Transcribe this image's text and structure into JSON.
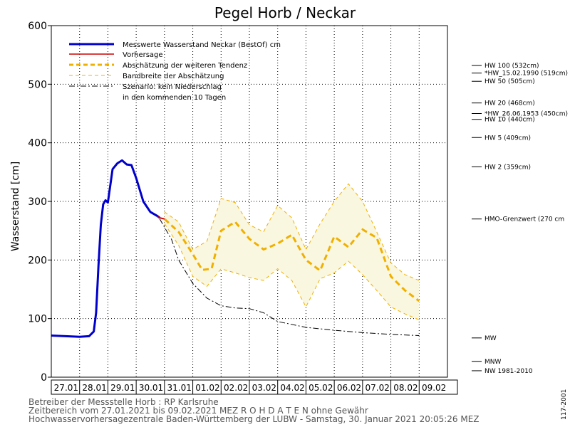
{
  "chart_data": {
    "type": "line",
    "title": "Pegel Horb / Neckar",
    "ylabel": "Wasserstand [cm]",
    "xlabel": "",
    "ylim": [
      0,
      600
    ],
    "yticks": [
      0,
      100,
      200,
      300,
      400,
      500,
      600
    ],
    "xlim": [
      "27.01.2021 00:00",
      "09.02.2021 24:00"
    ],
    "categories": [
      "27.01",
      "28.01",
      "29.01",
      "30.01",
      "31.01",
      "01.02",
      "02.02",
      "03.02",
      "04.02",
      "05.02",
      "06.02",
      "07.02",
      "08.02",
      "09.02"
    ],
    "grid": true,
    "legend_position": "top-left",
    "legend": [
      "Messwerte Wasserstand Neckar  (BestOf)   cm",
      "Vorhersage",
      "Abschätzung der weiteren Tendenz",
      "Bandbreite der Abschätzung",
      "Szenario: kein Niederschlag",
      "in den kommenden 10 Tagen"
    ],
    "colors": {
      "measured": "#0000cc",
      "forecast": "#cc0000",
      "tendency": "#f0b000",
      "band_line": "#f0b000",
      "band_fill": "#faf7e0",
      "scenario": "#000000",
      "grid": "#000000"
    },
    "series": [
      {
        "name": "Messwerte Wasserstand Neckar  (BestOf)   cm",
        "x": [
          "27.01.2021 00:00",
          "27.01.2021 12:00",
          "28.01.2021 00:00",
          "28.01.2021 08:00",
          "28.01.2021 12:00",
          "28.01.2021 14:00",
          "28.01.2021 16:00",
          "28.01.2021 18:00",
          "28.01.2021 20:00",
          "28.01.2021 22:00",
          "29.01.2021 00:00",
          "29.01.2021 04:00",
          "29.01.2021 08:00",
          "29.01.2021 12:00",
          "29.01.2021 16:00",
          "29.01.2021 20:00",
          "30.01.2021 00:00",
          "30.01.2021 06:00",
          "30.01.2021 12:00",
          "30.01.2021 18:00",
          "30.01.2021 20:00"
        ],
        "values": [
          71,
          70,
          69,
          70,
          78,
          110,
          190,
          260,
          295,
          302,
          298,
          355,
          365,
          370,
          363,
          362,
          340,
          300,
          282,
          275,
          272
        ]
      },
      {
        "name": "Vorhersage",
        "x": [
          "30.01.2021 18:00",
          "30.01.2021 20:00",
          "31.01.2021 00:00"
        ],
        "values": [
          274,
          272,
          270
        ]
      },
      {
        "name": "Abschätzung der weiteren Tendenz",
        "x": [
          "31.01.2021 00:00",
          "31.01.2021 12:00",
          "01.02.2021 00:00",
          "01.02.2021 08:00",
          "01.02.2021 16:00",
          "02.02.2021 00:00",
          "02.02.2021 12:00",
          "03.02.2021 00:00",
          "03.02.2021 12:00",
          "04.02.2021 00:00",
          "04.02.2021 12:00",
          "05.02.2021 00:00",
          "05.02.2021 12:00",
          "06.02.2021 00:00",
          "06.02.2021 12:00",
          "07.02.2021 00:00",
          "07.02.2021 12:00",
          "08.02.2021 00:00",
          "08.02.2021 12:00",
          "09.02.2021 00:00"
        ],
        "values": [
          270,
          248,
          210,
          183,
          185,
          250,
          265,
          236,
          218,
          228,
          243,
          200,
          182,
          240,
          222,
          252,
          238,
          172,
          148,
          130
        ]
      },
      {
        "name": "Bandbreite der Abschätzung (oben)",
        "x": [
          "31.01.2021 00:00",
          "31.01.2021 12:00",
          "01.02.2021 00:00",
          "01.02.2021 12:00",
          "02.02.2021 00:00",
          "02.02.2021 12:00",
          "03.02.2021 00:00",
          "03.02.2021 12:00",
          "04.02.2021 00:00",
          "04.02.2021 12:00",
          "05.02.2021 00:00",
          "05.02.2021 12:00",
          "06.02.2021 00:00",
          "06.02.2021 12:00",
          "07.02.2021 00:00",
          "07.02.2021 12:00",
          "08.02.2021 00:00",
          "08.02.2021 12:00",
          "09.02.2021 00:00"
        ],
        "values": [
          282,
          265,
          218,
          232,
          305,
          298,
          260,
          248,
          293,
          272,
          218,
          262,
          300,
          330,
          300,
          248,
          195,
          175,
          165
        ]
      },
      {
        "name": "Bandbreite der Abschätzung (unten)",
        "x": [
          "31.01.2021 00:00",
          "31.01.2021 12:00",
          "01.02.2021 00:00",
          "01.02.2021 12:00",
          "02.02.2021 00:00",
          "02.02.2021 12:00",
          "03.02.2021 00:00",
          "03.02.2021 12:00",
          "04.02.2021 00:00",
          "04.02.2021 12:00",
          "05.02.2021 00:00",
          "05.02.2021 12:00",
          "06.02.2021 00:00",
          "06.02.2021 12:00",
          "07.02.2021 00:00",
          "07.02.2021 12:00",
          "08.02.2021 00:00",
          "08.02.2021 12:00",
          "09.02.2021 00:00"
        ],
        "values": [
          262,
          225,
          172,
          155,
          185,
          178,
          170,
          165,
          185,
          165,
          120,
          168,
          178,
          198,
          175,
          148,
          120,
          108,
          98
        ]
      },
      {
        "name": "Szenario: kein Niederschlag in den kommenden 10 Tagen",
        "x": [
          "30.01.2021 20:00",
          "31.01.2021 06:00",
          "31.01.2021 12:00",
          "01.02.2021 00:00",
          "01.02.2021 12:00",
          "02.02.2021 00:00",
          "02.02.2021 12:00",
          "03.02.2021 00:00",
          "03.02.2021 12:00",
          "04.02.2021 00:00",
          "05.02.2021 00:00",
          "06.02.2021 00:00",
          "07.02.2021 00:00",
          "08.02.2021 00:00",
          "09.02.2021 00:00"
        ],
        "values": [
          270,
          235,
          200,
          160,
          135,
          122,
          118,
          117,
          110,
          95,
          85,
          80,
          76,
          73,
          71
        ]
      }
    ],
    "reference_levels": [
      {
        "label": "HW 100 (532cm)",
        "value": 532
      },
      {
        "label": "*HW_15.02.1990 (519cm)",
        "value": 519
      },
      {
        "label": "HW 50 (505cm)",
        "value": 505
      },
      {
        "label": "HW 20 (468cm)",
        "value": 468
      },
      {
        "label": "*HW_26.06.1953 (450cm)",
        "value": 450
      },
      {
        "label": "HW 10 (440cm)",
        "value": 440
      },
      {
        "label": "HW 5 (409cm)",
        "value": 409
      },
      {
        "label": "HW 2 (359cm)",
        "value": 359
      },
      {
        "label": "HMO-Grenzwert (270 cm",
        "value": 270
      },
      {
        "label": "MW",
        "value": 67
      },
      {
        "label": "MNW",
        "value": 27
      },
      {
        "label": "NW 1981-2010",
        "value": 11
      }
    ]
  },
  "footer": {
    "line1": "Betreiber der Messstelle Horb : RP Karlsruhe",
    "line2": "Zeitbereich vom 27.01.2021 bis 09.02.2021    MEZ    R O H D A T E N ohne Gewähr",
    "line3": "Hochwasservorhersagezentrale Baden-Württemberg der LUBW - Samstag, 30. Januar 2021 20:05:26 MEZ",
    "side_code": "117-2001"
  }
}
